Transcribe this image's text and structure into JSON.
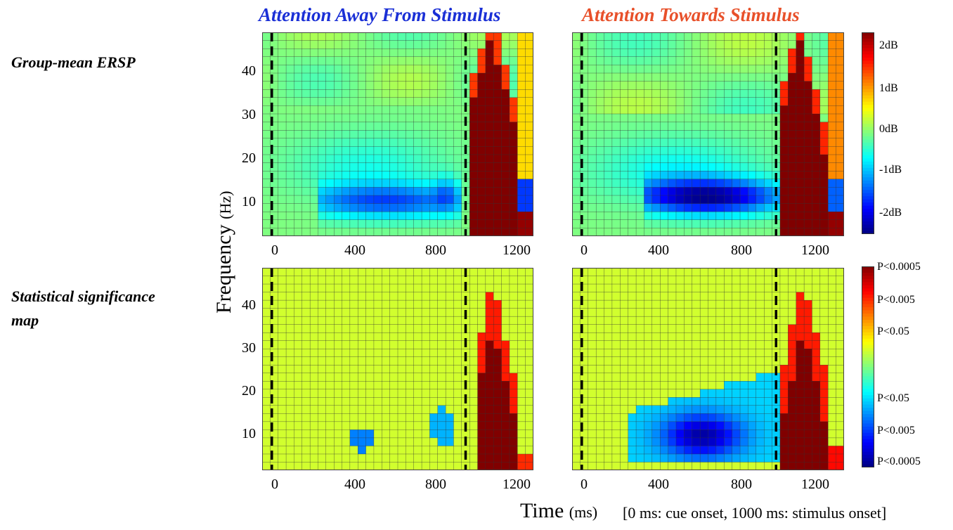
{
  "titles": {
    "left": "Attention Away From Stimulus",
    "right": "Attention Towards Stimulus",
    "left_color": "#1a2fd6",
    "right_color": "#e8502a"
  },
  "row_labels": {
    "top": "Group-mean ERSP",
    "bottom_line1": "Statistical significance",
    "bottom_line2": "map"
  },
  "axes": {
    "ylabel_main": "Frequency",
    "ylabel_unit": "(Hz)",
    "xlabel_main": "Time",
    "xlabel_unit": "(ms)",
    "xlabel_note": "[0 ms: cue onset, 1000 ms: stimulus onset]",
    "x_ticks": [
      "0",
      "400",
      "800",
      "1200"
    ],
    "y_ticks": [
      "10",
      "20",
      "30",
      "40"
    ]
  },
  "colorbars": {
    "ersp": [
      "2dB",
      "1dB",
      "0dB",
      "-1dB",
      "-2dB"
    ],
    "sig": [
      "P<0.0005",
      "P<0.005",
      "P<0.05",
      "P<0.05",
      "P<0.005",
      "P<0.0005"
    ]
  },
  "chart_data": [
    {
      "type": "heatmap",
      "name": "ersp-away",
      "x_range_ms": [
        -50,
        1350
      ],
      "y_range_hz": [
        2,
        49
      ],
      "cue_onset_ms": 0,
      "stimulus_onset_ms": 1000,
      "color_range_db": [
        -2.5,
        2.5
      ],
      "notable_features": "Desynchronization (~-1.5 dB) at 8-14 Hz from 250 to 1000 ms; strong broadband increase (>2 dB) at 1050-1250 ms up to ~45 Hz"
    },
    {
      "type": "heatmap",
      "name": "ersp-towards",
      "x_range_ms": [
        -50,
        1350
      ],
      "y_range_hz": [
        2,
        49
      ],
      "cue_onset_ms": 0,
      "stimulus_onset_ms": 1000,
      "color_range_db": [
        -2.5,
        2.5
      ],
      "notable_features": "Stronger desynchronization (~-2.3 dB) at 6-14 Hz from 300 to 1000 ms; strong broadband increase (>2 dB) at 1020-1230 ms up to ~45 Hz"
    },
    {
      "type": "heatmap",
      "name": "sig-away",
      "x_range_ms": [
        -50,
        1350
      ],
      "y_range_hz": [
        2,
        49
      ],
      "color_scale": [
        "P<0.0005",
        "P<0.005",
        "P<0.05",
        "n.s.",
        "P<0.05",
        "P<0.005",
        "P<0.0005"
      ],
      "notable_features": "Sparse significant decreases at 5-23 Hz (400-950 ms); significant increase cluster at 1050-1250 ms"
    },
    {
      "type": "heatmap",
      "name": "sig-towards",
      "x_range_ms": [
        -50,
        1350
      ],
      "y_range_hz": [
        2,
        49
      ],
      "color_scale": [
        "P<0.0005",
        "P<0.005",
        "P<0.05",
        "n.s.",
        "P<0.05",
        "P<0.005",
        "P<0.0005"
      ],
      "notable_features": "Large significant decrease cluster at 3-25 Hz (250-1000 ms), strongest near 600 ms / 10 Hz; significant increase cluster at 1020-1250 ms"
    }
  ]
}
